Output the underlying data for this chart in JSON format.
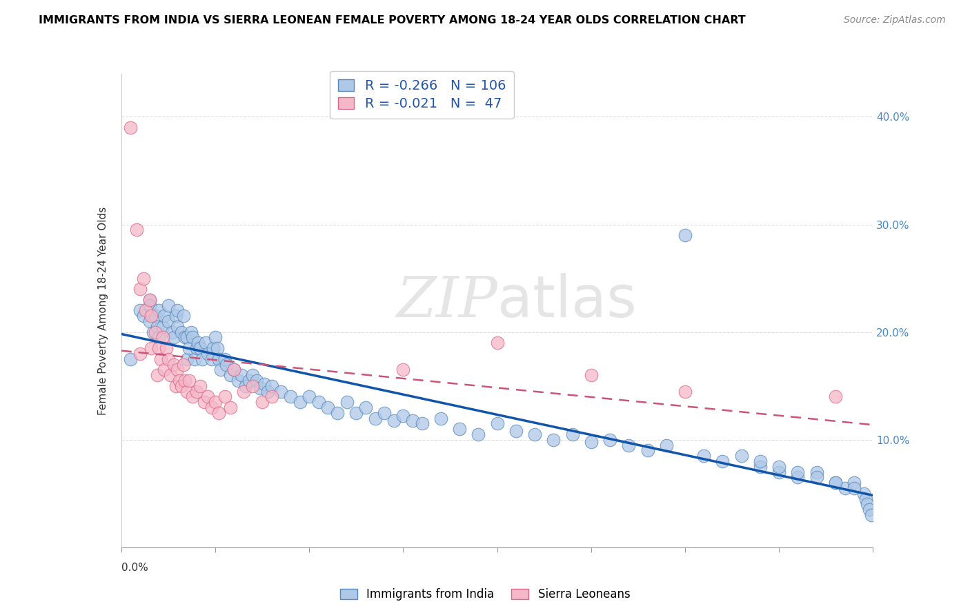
{
  "title": "IMMIGRANTS FROM INDIA VS SIERRA LEONEAN FEMALE POVERTY AMONG 18-24 YEAR OLDS CORRELATION CHART",
  "source": "Source: ZipAtlas.com",
  "ylabel": "Female Poverty Among 18-24 Year Olds",
  "legend_label1": "Immigrants from India",
  "legend_label2": "Sierra Leoneans",
  "R1": "-0.266",
  "N1": "106",
  "R2": "-0.021",
  "N2": "47",
  "color_blue_fill": "#aec8e8",
  "color_blue_edge": "#5588bb",
  "color_pink_fill": "#f4b8c8",
  "color_pink_edge": "#dd6688",
  "color_blue_line": "#1155aa",
  "color_pink_line": "#cc5577",
  "watermark_color": "#cccccc",
  "xlim": [
    0.0,
    0.4
  ],
  "ylim": [
    0.0,
    0.44
  ],
  "blue_scatter_x": [
    0.005,
    0.01,
    0.012,
    0.015,
    0.015,
    0.015,
    0.017,
    0.018,
    0.019,
    0.02,
    0.02,
    0.022,
    0.023,
    0.025,
    0.025,
    0.027,
    0.028,
    0.029,
    0.03,
    0.03,
    0.032,
    0.033,
    0.034,
    0.035,
    0.035,
    0.036,
    0.037,
    0.038,
    0.039,
    0.04,
    0.041,
    0.042,
    0.043,
    0.045,
    0.046,
    0.048,
    0.049,
    0.05,
    0.051,
    0.052,
    0.053,
    0.055,
    0.056,
    0.058,
    0.06,
    0.062,
    0.064,
    0.066,
    0.068,
    0.07,
    0.072,
    0.074,
    0.076,
    0.078,
    0.08,
    0.085,
    0.09,
    0.095,
    0.1,
    0.105,
    0.11,
    0.115,
    0.12,
    0.125,
    0.13,
    0.135,
    0.14,
    0.145,
    0.15,
    0.155,
    0.16,
    0.17,
    0.18,
    0.19,
    0.2,
    0.21,
    0.22,
    0.23,
    0.24,
    0.25,
    0.26,
    0.27,
    0.28,
    0.29,
    0.3,
    0.31,
    0.32,
    0.33,
    0.34,
    0.35,
    0.36,
    0.37,
    0.38,
    0.385,
    0.39,
    0.395,
    0.396,
    0.397,
    0.398,
    0.399,
    0.34,
    0.35,
    0.36,
    0.37,
    0.38,
    0.39
  ],
  "blue_scatter_y": [
    0.175,
    0.22,
    0.215,
    0.23,
    0.225,
    0.21,
    0.2,
    0.215,
    0.205,
    0.22,
    0.195,
    0.205,
    0.215,
    0.225,
    0.21,
    0.2,
    0.195,
    0.215,
    0.205,
    0.22,
    0.2,
    0.215,
    0.195,
    0.175,
    0.195,
    0.185,
    0.2,
    0.195,
    0.175,
    0.185,
    0.19,
    0.185,
    0.175,
    0.19,
    0.18,
    0.175,
    0.185,
    0.195,
    0.185,
    0.175,
    0.165,
    0.175,
    0.17,
    0.16,
    0.165,
    0.155,
    0.16,
    0.15,
    0.155,
    0.16,
    0.155,
    0.148,
    0.152,
    0.145,
    0.15,
    0.145,
    0.14,
    0.135,
    0.14,
    0.135,
    0.13,
    0.125,
    0.135,
    0.125,
    0.13,
    0.12,
    0.125,
    0.118,
    0.122,
    0.118,
    0.115,
    0.12,
    0.11,
    0.105,
    0.115,
    0.108,
    0.105,
    0.1,
    0.105,
    0.098,
    0.1,
    0.095,
    0.09,
    0.095,
    0.29,
    0.085,
    0.08,
    0.085,
    0.075,
    0.07,
    0.065,
    0.07,
    0.06,
    0.055,
    0.06,
    0.05,
    0.045,
    0.04,
    0.035,
    0.03,
    0.08,
    0.075,
    0.07,
    0.065,
    0.06,
    0.055
  ],
  "pink_scatter_x": [
    0.005,
    0.008,
    0.01,
    0.01,
    0.012,
    0.013,
    0.015,
    0.016,
    0.016,
    0.018,
    0.019,
    0.02,
    0.021,
    0.022,
    0.023,
    0.024,
    0.025,
    0.026,
    0.028,
    0.029,
    0.03,
    0.031,
    0.032,
    0.033,
    0.034,
    0.035,
    0.036,
    0.038,
    0.04,
    0.042,
    0.044,
    0.046,
    0.048,
    0.05,
    0.052,
    0.055,
    0.058,
    0.06,
    0.065,
    0.07,
    0.075,
    0.08,
    0.15,
    0.2,
    0.25,
    0.3,
    0.38
  ],
  "pink_scatter_y": [
    0.39,
    0.295,
    0.24,
    0.18,
    0.25,
    0.22,
    0.23,
    0.215,
    0.185,
    0.2,
    0.16,
    0.185,
    0.175,
    0.195,
    0.165,
    0.185,
    0.175,
    0.16,
    0.17,
    0.15,
    0.165,
    0.155,
    0.15,
    0.17,
    0.155,
    0.145,
    0.155,
    0.14,
    0.145,
    0.15,
    0.135,
    0.14,
    0.13,
    0.135,
    0.125,
    0.14,
    0.13,
    0.165,
    0.145,
    0.15,
    0.135,
    0.14,
    0.165,
    0.19,
    0.16,
    0.145,
    0.14
  ]
}
